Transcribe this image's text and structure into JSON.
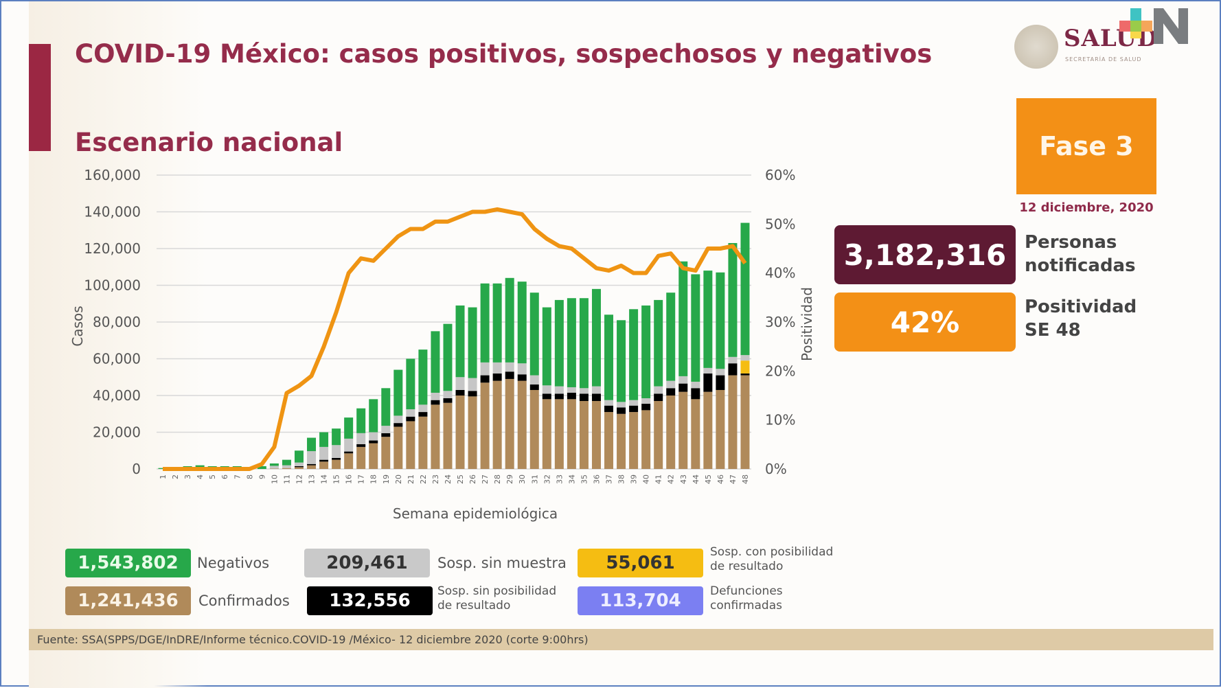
{
  "header": {
    "title": "COVID-19 México: casos positivos, sospechosos y negativos",
    "subtitle": "Escenario nacional"
  },
  "logo": {
    "name": "SALUD",
    "tagline": "SECRETARÍA DE SALUD"
  },
  "phase": {
    "label": "Fase 3",
    "date": "12 diciembre, 2020"
  },
  "kpis": {
    "notified": {
      "value": "3,182,316",
      "label_line1": "Personas",
      "label_line2": "notificadas"
    },
    "positivity": {
      "value": "42%",
      "label_line1": "Positividad",
      "label_line2": "SE 48"
    }
  },
  "colors": {
    "negativos": "#27a84a",
    "confirmados": "#b08a5a",
    "sin_muestra": "#c6c6c6",
    "sin_posibilidad": "#000000",
    "con_posibilidad": "#f5bd12",
    "defunciones": "#7b7ff2",
    "positividad": "#ef9413",
    "brand": "#952c4b",
    "personas": "#5e1a33",
    "fase": "#f39016"
  },
  "legend": [
    {
      "value": "1,543,802",
      "label": "Negativos"
    },
    {
      "value": "209,461",
      "label": "Sosp. sin muestra"
    },
    {
      "value": "55,061",
      "label_line1": "Sosp. con posibilidad",
      "label_line2": "de resultado"
    },
    {
      "value": "1,241,436",
      "label": "Confirmados"
    },
    {
      "value": "132,556",
      "label_line1": "Sosp. sin posibilidad",
      "label_line2": "de resultado"
    },
    {
      "value": "113,704",
      "label_line1": "Defunciones",
      "label_line2": "confirmadas"
    }
  ],
  "footer": "Fuente: SSA(SPPS/DGE/InDRE/Informe técnico.COVID-19 /México- 12 diciembre 2020 (corte 9:00hrs)",
  "chart_data": {
    "type": "bar",
    "stacked": true,
    "xlabel": "Semana epidemiológica",
    "ylabel": "Casos",
    "y2label": "Positividad",
    "ylim": [
      0,
      160000
    ],
    "y2lim": [
      0,
      60
    ],
    "yticks": [
      "0",
      "20,000",
      "40,000",
      "60,000",
      "80,000",
      "100,000",
      "120,000",
      "140,000",
      "160,000"
    ],
    "y2ticks": [
      "0%",
      "10%",
      "20%",
      "30%",
      "40%",
      "50%",
      "60%"
    ],
    "grid": true,
    "categories": [
      "1",
      "2",
      "3",
      "4",
      "5",
      "6",
      "7",
      "8",
      "9",
      "10",
      "11",
      "12",
      "13",
      "14",
      "15",
      "16",
      "17",
      "18",
      "19",
      "20",
      "21",
      "22",
      "23",
      "24",
      "25",
      "26",
      "27",
      "28",
      "29",
      "30",
      "31",
      "32",
      "33",
      "34",
      "35",
      "36",
      "37",
      "38",
      "39",
      "40",
      "41",
      "42",
      "43",
      "44",
      "45",
      "46",
      "47",
      "48"
    ],
    "series": [
      {
        "name": "Confirmados",
        "values": [
          0,
          0,
          0,
          0,
          0,
          0,
          0,
          0,
          0,
          200,
          500,
          1000,
          2000,
          4000,
          5000,
          8500,
          12000,
          14000,
          17500,
          23000,
          26000,
          28500,
          35000,
          36000,
          40000,
          39500,
          47000,
          48000,
          49000,
          48000,
          43000,
          38000,
          38000,
          38000,
          37000,
          37000,
          31000,
          30000,
          31000,
          32000,
          37000,
          40000,
          42000,
          38000,
          42000,
          43000,
          51000,
          51000
        ]
      },
      {
        "name": "Sosp. sin posibilidad de resultado",
        "values": [
          0,
          0,
          0,
          0,
          0,
          0,
          0,
          0,
          0,
          0,
          0,
          500,
          700,
          1000,
          1000,
          1000,
          1500,
          1500,
          2000,
          2000,
          2500,
          2500,
          2500,
          2500,
          3000,
          3000,
          4000,
          4000,
          4000,
          3500,
          3000,
          3000,
          3000,
          3500,
          4000,
          4000,
          3500,
          3500,
          3500,
          3500,
          4000,
          4000,
          4500,
          6000,
          10000,
          8000,
          6500,
          1000
        ]
      },
      {
        "name": "Sosp. con posibilidad de resultado",
        "values": [
          0,
          0,
          0,
          0,
          0,
          0,
          0,
          0,
          0,
          0,
          0,
          0,
          0,
          0,
          0,
          0,
          0,
          0,
          0,
          0,
          0,
          0,
          0,
          0,
          0,
          0,
          0,
          0,
          0,
          0,
          0,
          0,
          0,
          0,
          0,
          0,
          0,
          0,
          0,
          0,
          0,
          0,
          0,
          0,
          0,
          0,
          0,
          7000
        ]
      },
      {
        "name": "Sosp. sin muestra",
        "values": [
          0,
          0,
          0,
          0,
          0,
          0,
          0,
          0,
          0,
          1500,
          1500,
          2000,
          7000,
          7000,
          7000,
          7000,
          6000,
          4500,
          4000,
          4000,
          4000,
          4000,
          4000,
          4000,
          7000,
          7000,
          7000,
          6000,
          5000,
          6000,
          5000,
          4500,
          4000,
          3000,
          3000,
          4000,
          3000,
          3000,
          3000,
          3000,
          4000,
          4000,
          4000,
          3500,
          3000,
          3500,
          3500,
          3000
        ]
      },
      {
        "name": "Negativos",
        "values": [
          500,
          1000,
          1500,
          2000,
          1500,
          1500,
          1500,
          1000,
          1500,
          1300,
          3000,
          6500,
          7300,
          8000,
          9000,
          11500,
          13500,
          18000,
          20500,
          25000,
          27500,
          30000,
          33500,
          36500,
          39000,
          38500,
          43000,
          43000,
          46000,
          44500,
          45000,
          42500,
          47000,
          48500,
          49000,
          53000,
          46500,
          44500,
          49500,
          50500,
          47000,
          48000,
          62500,
          58500,
          53000,
          52500,
          62000,
          72000
        ]
      },
      {
        "name": "Positividad",
        "axis": "right",
        "type": "line",
        "values": [
          0,
          0,
          0,
          0,
          0,
          0,
          0,
          0,
          1,
          4.5,
          15.5,
          17,
          19,
          25,
          32,
          40,
          43,
          42.5,
          45,
          47.5,
          49,
          49,
          50.5,
          50.5,
          51.5,
          52.5,
          52.5,
          53,
          52.5,
          52,
          49,
          47,
          45.5,
          45,
          43,
          41,
          40.5,
          41.5,
          40,
          40,
          43.5,
          44,
          41,
          40.5,
          45,
          45,
          45.5,
          42
        ]
      }
    ]
  }
}
